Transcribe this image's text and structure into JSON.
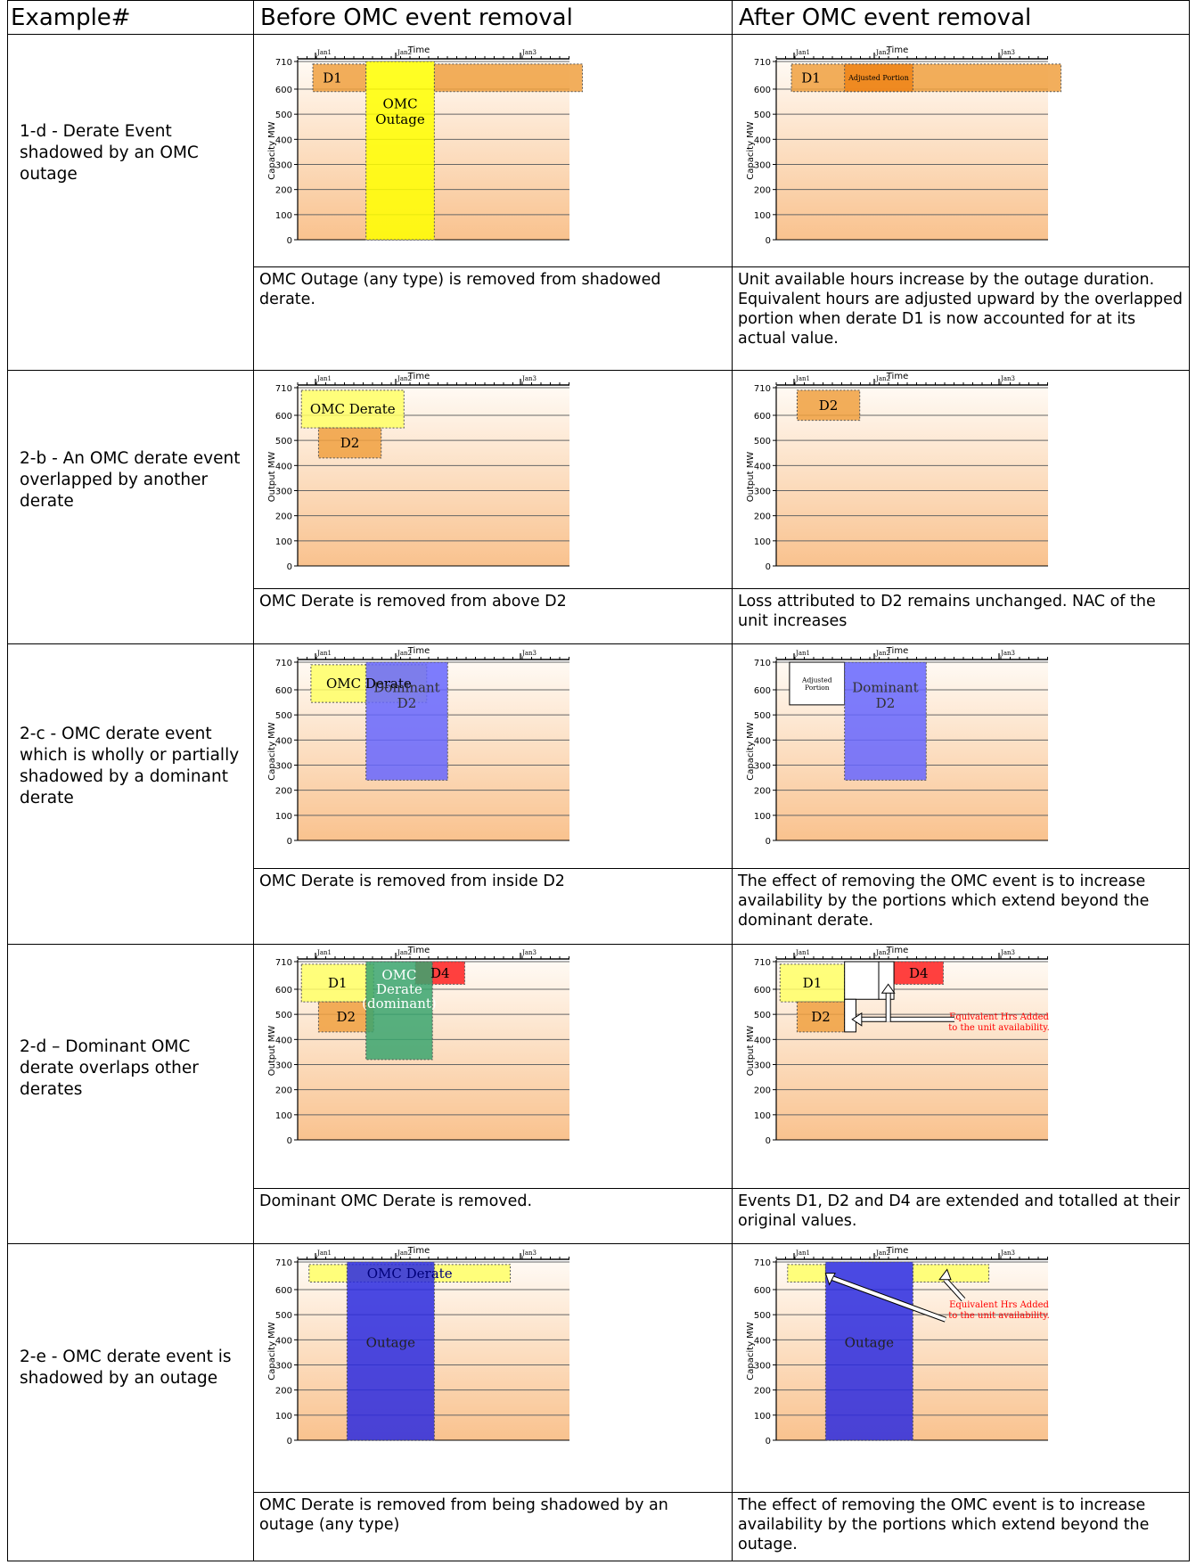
{
  "headers": {
    "example": "Example#",
    "before": "Before OMC event removal",
    "after": "After OMC event removal"
  },
  "axis": {
    "time": "Time",
    "ticks": [
      "Jan1",
      "Jan2",
      "Jan3"
    ],
    "y_ticks": [
      "710",
      "600",
      "500",
      "400",
      "300",
      "200",
      "100",
      "0"
    ]
  },
  "colors": {
    "orange": "#f0a040",
    "yellow": "#ffff00",
    "light_yellow": "#ffff66",
    "blue": "#6666ff",
    "dark_blue": "#2a2ae0",
    "green": "#3aa56e",
    "red": "#ff2020",
    "annotation_red": "#ff0000"
  },
  "rows": [
    {
      "example": "1-d - Derate Event shadowed by an OMC outage",
      "before_desc": "OMC Outage (any type) is removed from shadowed derate.",
      "after_desc": "Unit available hours increase by the outage duration. Equivalent hours are adjusted upward by the overlapped portion when derate D1 is now accounted for at its actual value.",
      "before_chart": {
        "ylabel": "Capacity MW",
        "events": [
          {
            "name": "D1",
            "label": "D1",
            "start": 0.4,
            "end": 1.8,
            "top": 700,
            "bottom": 590,
            "color": "#f0a040"
          },
          {
            "name": "D1-continued",
            "label": "",
            "start": 3.6,
            "end": 7.5,
            "top": 700,
            "bottom": 590,
            "color": "#f0a040"
          },
          {
            "name": "omc-outage",
            "label": "OMC\nOutage",
            "start": 1.8,
            "end": 3.6,
            "top": 710,
            "bottom": 0,
            "color": "#ffff00"
          }
        ]
      },
      "after_chart": {
        "ylabel": "Capacity MW",
        "events": [
          {
            "name": "D1",
            "label": "D1",
            "start": 0.4,
            "end": 7.5,
            "top": 700,
            "bottom": 590,
            "color": "#f0a040"
          },
          {
            "name": "adjusted-portion",
            "label": "Adjusted Portion",
            "start": 1.8,
            "end": 3.6,
            "top": 700,
            "bottom": 590,
            "color": "#ef8418"
          }
        ]
      }
    },
    {
      "example": "2-b - An OMC derate event overlapped by another derate",
      "before_desc": "OMC Derate is removed from above D2",
      "after_desc": "Loss attributed to D2 remains unchanged. NAC of the unit increases",
      "before_chart": {
        "ylabel": "Output MW",
        "events": [
          {
            "name": "omc-derate",
            "label": "OMC Derate",
            "start": 0.1,
            "end": 2.8,
            "top": 700,
            "bottom": 550,
            "color": "#ffff66"
          },
          {
            "name": "D2",
            "label": "D2",
            "start": 0.55,
            "end": 2.2,
            "top": 550,
            "bottom": 430,
            "color": "#f0a040"
          }
        ]
      },
      "after_chart": {
        "ylabel": "Output MW",
        "events": [
          {
            "name": "D2",
            "label": "D2",
            "start": 0.55,
            "end": 2.2,
            "top": 700,
            "bottom": 580,
            "color": "#f0a040"
          }
        ]
      }
    },
    {
      "example": "2-c - OMC derate event which is wholly or partially shadowed by a dominant derate",
      "before_desc": "OMC Derate is removed from inside D2",
      "after_desc": "The effect of removing the OMC event is to increase availability by the portions which extend beyond the dominant derate.",
      "before_chart": {
        "ylabel": "Capacity MW",
        "events": [
          {
            "name": "omc-derate",
            "label": "OMC Derate",
            "start": 0.35,
            "end": 3.4,
            "top": 700,
            "bottom": 550,
            "color": "#ffff66"
          },
          {
            "name": "dominant-D2",
            "label": "Dominant\nD2",
            "start": 1.8,
            "end": 3.95,
            "top": 710,
            "bottom": 240,
            "color": "#6666ff"
          }
        ]
      },
      "after_chart": {
        "ylabel": "Capacity MW",
        "events": [
          {
            "name": "adjusted-portion",
            "label": "Adjusted\nPortion",
            "start": 0.35,
            "end": 1.8,
            "top": 710,
            "bottom": 540,
            "color": "#ffffff"
          },
          {
            "name": "dominant-D2",
            "label": "Dominant\nD2",
            "start": 1.8,
            "end": 3.95,
            "top": 710,
            "bottom": 240,
            "color": "#6666ff"
          }
        ]
      }
    },
    {
      "example": "2-d – Dominant OMC derate overlaps other derates",
      "before_desc": "Dominant OMC Derate is removed.",
      "after_desc": "Events D1, D2 and D4 are extended and totalled at their original values.",
      "before_chart": {
        "ylabel": "Output MW",
        "events": [
          {
            "name": "D1",
            "label": "D1",
            "start": 0.1,
            "end": 2.0,
            "top": 700,
            "bottom": 550,
            "color": "#ffff66"
          },
          {
            "name": "D2",
            "label": "D2",
            "start": 0.55,
            "end": 2.0,
            "top": 550,
            "bottom": 430,
            "color": "#f0a040"
          },
          {
            "name": "D4",
            "label": "D4",
            "start": 3.1,
            "end": 4.4,
            "top": 710,
            "bottom": 620,
            "color": "#ff2020"
          },
          {
            "name": "dominant-omc-derate",
            "label": "OMC\nDerate\n(dominant)",
            "start": 1.8,
            "end": 3.55,
            "top": 710,
            "bottom": 320,
            "color": "#3aa56e"
          }
        ]
      },
      "after_chart": {
        "ylabel": "Output MW",
        "events": [
          {
            "name": "D1",
            "label": "D1",
            "start": 0.1,
            "end": 1.8,
            "top": 700,
            "bottom": 550,
            "color": "#ffff66"
          },
          {
            "name": "D2",
            "label": "D2",
            "start": 0.55,
            "end": 1.8,
            "top": 550,
            "bottom": 430,
            "color": "#f0a040"
          },
          {
            "name": "D4",
            "label": "D4",
            "start": 3.1,
            "end": 4.4,
            "top": 710,
            "bottom": 620,
            "color": "#ff2020"
          },
          {
            "name": "extended-D1",
            "label": "",
            "start": 1.8,
            "end": 2.7,
            "top": 710,
            "bottom": 560,
            "color": "#ffffff"
          },
          {
            "name": "extended-D2",
            "label": "",
            "start": 1.8,
            "end": 2.1,
            "top": 560,
            "bottom": 430,
            "color": "#ffffff"
          },
          {
            "name": "extended-D4",
            "label": "",
            "start": 2.7,
            "end": 3.1,
            "top": 710,
            "bottom": 560,
            "color": "#ffffff"
          }
        ],
        "annotation": "Equivalent Hrs Added\nto the unit availability."
      }
    },
    {
      "example": "2-e - OMC derate event is shadowed by an outage",
      "before_desc": "OMC Derate is removed from being shadowed by an outage (any type)",
      "after_desc": "The effect of removing the OMC event is to increase availability by the portions which extend beyond the outage.",
      "before_chart": {
        "ylabel": "Capacity MW",
        "events": [
          {
            "name": "omc-derate",
            "label": "OMC Derate",
            "start": 0.3,
            "end": 5.6,
            "top": 700,
            "bottom": 630,
            "color": "#ffff66"
          },
          {
            "name": "outage",
            "label": "Outage",
            "start": 1.3,
            "end": 3.6,
            "top": 710,
            "bottom": 0,
            "color": "#2a2ae0"
          }
        ]
      },
      "after_chart": {
        "ylabel": "Capacity MW",
        "events": [
          {
            "name": "remaining-left",
            "label": "",
            "start": 0.3,
            "end": 1.3,
            "top": 700,
            "bottom": 630,
            "color": "#ffff66"
          },
          {
            "name": "remaining-right",
            "label": "",
            "start": 3.6,
            "end": 5.6,
            "top": 700,
            "bottom": 630,
            "color": "#ffff66"
          },
          {
            "name": "outage",
            "label": "Outage",
            "start": 1.3,
            "end": 3.6,
            "top": 710,
            "bottom": 0,
            "color": "#2a2ae0"
          }
        ],
        "annotation": "Equivalent Hrs Added\nto the unit availability."
      }
    }
  ]
}
